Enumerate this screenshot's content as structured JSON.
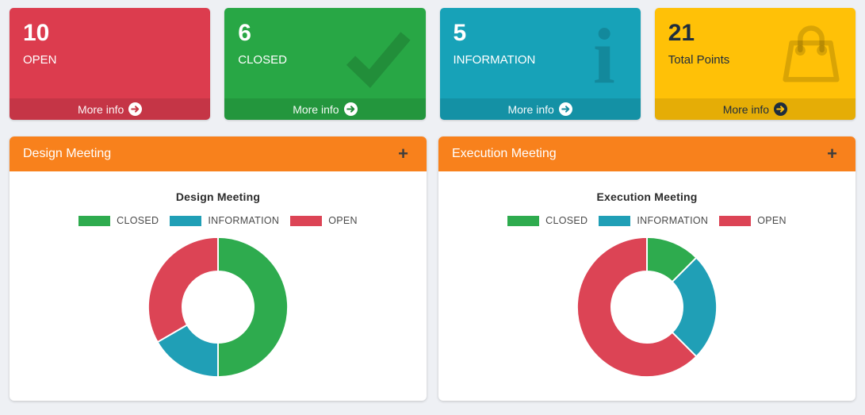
{
  "page": {
    "background_color": "#eef0f4"
  },
  "icons": {
    "info": "i",
    "check": "check-mark",
    "shopping_bag": "shopping-bag-outline",
    "more_info_arrow": "arrow-circle-right"
  },
  "summary_boxes": [
    {
      "value": "10",
      "label": "OPEN",
      "more_info": "More info",
      "color": "#dc3c4e",
      "icon": null
    },
    {
      "value": "6",
      "label": "CLOSED",
      "more_info": "More info",
      "color": "#28a745",
      "icon": "check-icon"
    },
    {
      "value": "5",
      "label": "INFORMATION",
      "more_info": "More info",
      "color": "#17a2b8",
      "icon": "info-icon"
    },
    {
      "value": "21",
      "label": "Total Points",
      "more_info": "More info",
      "color": "#ffc107",
      "icon": "shopping-bag-icon",
      "text_color": "#1f2d3d"
    }
  ],
  "panels": [
    {
      "title": "Design Meeting",
      "collapse": "+"
    },
    {
      "title": "Execution Meeting",
      "collapse": "+"
    }
  ],
  "chart_data": [
    {
      "type": "pie",
      "donut": true,
      "title": "Design Meeting",
      "labels": [
        "CLOSED",
        "INFORMATION",
        "OPEN"
      ],
      "values": [
        3,
        1,
        2
      ],
      "percentages": [
        50,
        16.7,
        33.3
      ],
      "colors": [
        "#2eab4e",
        "#209fb6",
        "#dc4455"
      ],
      "legend_position": "top",
      "start_angle": "top",
      "direction": "clockwise"
    },
    {
      "type": "pie",
      "donut": true,
      "title": "Execution Meeting",
      "labels": [
        "CLOSED",
        "INFORMATION",
        "OPEN"
      ],
      "values": [
        1,
        2,
        5
      ],
      "percentages": [
        12.5,
        25,
        62.5
      ],
      "colors": [
        "#2eab4e",
        "#209fb6",
        "#dc4455"
      ],
      "legend_position": "top",
      "start_angle": "top",
      "direction": "clockwise"
    }
  ]
}
